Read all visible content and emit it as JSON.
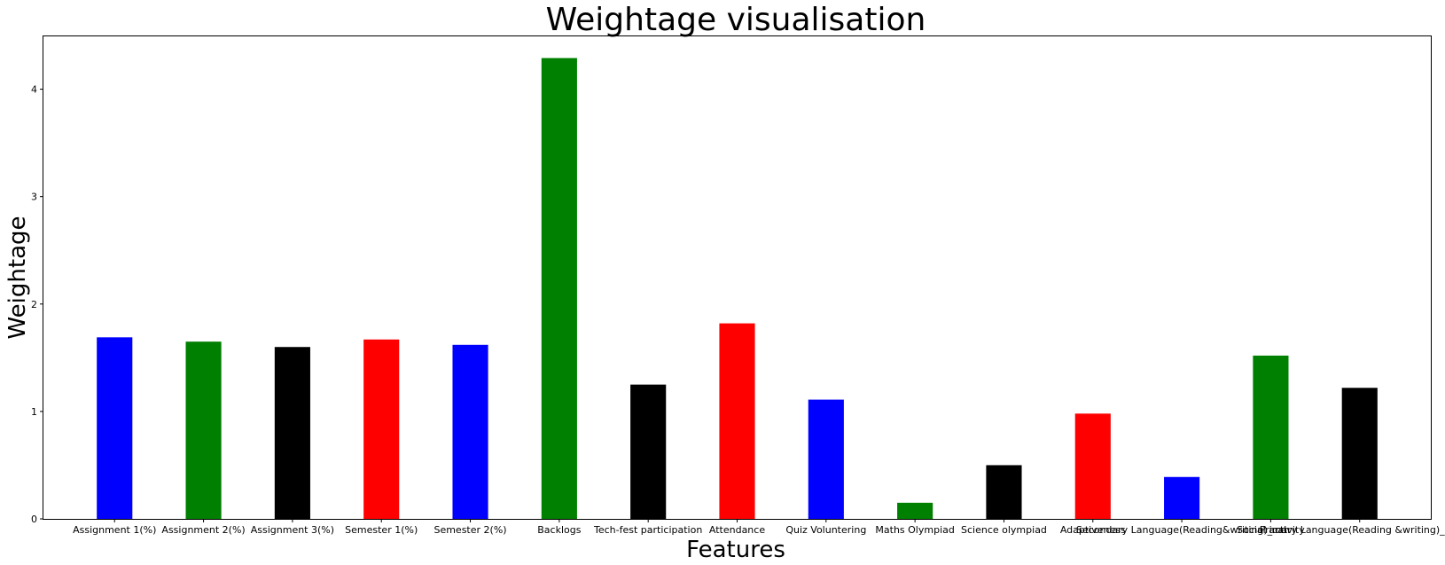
{
  "chart_data": {
    "type": "bar",
    "title": "Weightage visualisation",
    "xlabel": "Features",
    "ylabel": "Weightage",
    "ylim": [
      0,
      4.5
    ],
    "yticks": [
      "0",
      "1",
      "2",
      "3",
      "4"
    ],
    "categories": [
      "Assignment 1(%)",
      "Assignment 2(%)",
      "Assignment 3(%)",
      "Semester 1(%)",
      "Semester 2(%)",
      "Backlogs",
      "Tech-fest participation",
      "Attendance",
      "Quiz Voluntering",
      "Maths Olympiad",
      "Science olympiad",
      "Adaptiveness",
      "Secondary Language(Reading&writing)_cat",
      "Social activity",
      "Primary Language(Reading &writing)_cat"
    ],
    "values": [
      1.69,
      1.65,
      1.6,
      1.67,
      1.62,
      4.29,
      1.25,
      1.82,
      1.11,
      0.15,
      0.5,
      0.98,
      0.39,
      1.52,
      1.22
    ],
    "bar_colors": [
      "#0000ff",
      "#008000",
      "#000000",
      "#ff0000",
      "#0000ff",
      "#008000",
      "#000000",
      "#ff0000",
      "#0000ff",
      "#008000",
      "#000000",
      "#ff0000",
      "#0000ff",
      "#008000",
      "#000000"
    ],
    "grid": false,
    "legend": false
  }
}
